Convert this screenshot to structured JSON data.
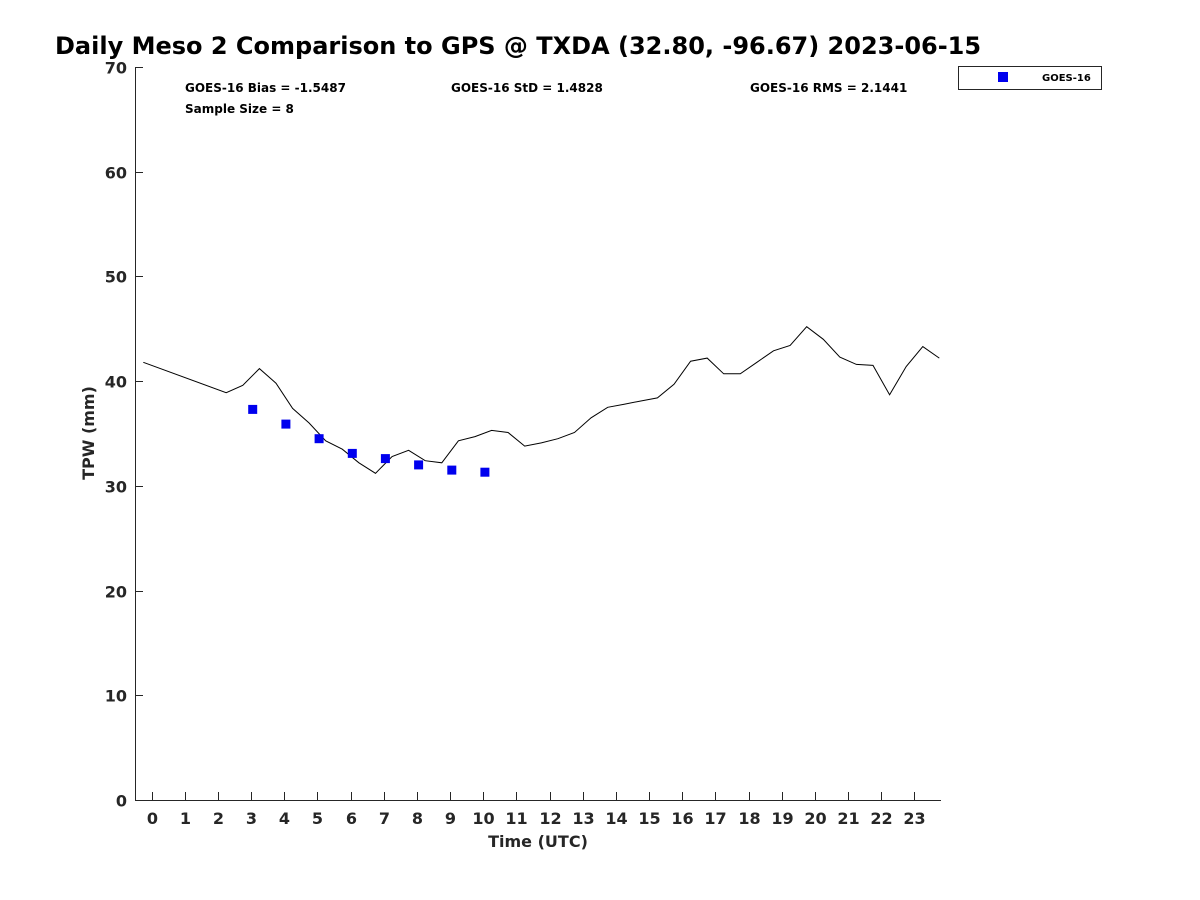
{
  "chart_data": {
    "type": "scatter",
    "title": "Daily Meso 2 Comparison to GPS @ TXDA (32.80, -96.67) 2023-06-15",
    "xlabel": "Time (UTC)",
    "ylabel": "TPW (mm)",
    "xlim": [
      -0.5,
      23.8
    ],
    "ylim": [
      0,
      70
    ],
    "x_ticks": [
      0,
      1,
      2,
      3,
      4,
      5,
      6,
      7,
      8,
      9,
      10,
      11,
      12,
      13,
      14,
      15,
      16,
      17,
      18,
      19,
      20,
      21,
      22,
      23
    ],
    "y_ticks": [
      0,
      10,
      20,
      30,
      40,
      50,
      60,
      70
    ],
    "grid": false,
    "legend_position": "outside-top-right",
    "stats": {
      "bias": "GOES-16 Bias = -1.5487",
      "std": "GOES-16 StD = 1.4828",
      "rms": "GOES-16 RMS = 2.1441",
      "sample": "Sample Size = 8"
    },
    "series": [
      {
        "name": "GOES-16",
        "type": "scatter",
        "marker": "square",
        "color": "#0000ee",
        "x": [
          3.05,
          4.05,
          5.05,
          6.05,
          7.05,
          8.05,
          9.05,
          10.05
        ],
        "y": [
          37.3,
          35.9,
          34.5,
          33.1,
          32.6,
          32.0,
          31.5,
          31.3
        ]
      },
      {
        "type": "line",
        "color": "#000000",
        "x": [
          -0.25,
          2.25,
          2.75,
          3.25,
          3.75,
          4.25,
          4.75,
          5.25,
          5.75,
          6.25,
          6.75,
          7.25,
          7.75,
          8.25,
          8.75,
          9.25,
          9.75,
          10.25,
          10.75,
          11.25,
          11.75,
          12.25,
          12.75,
          13.25,
          13.75,
          14.25,
          14.75,
          15.25,
          15.75,
          16.25,
          16.75,
          17.25,
          17.75,
          18.25,
          18.75,
          19.25,
          19.75,
          20.25,
          20.75,
          21.25,
          21.75,
          22.25,
          22.75,
          23.25,
          23.75
        ],
        "y": [
          41.8,
          38.9,
          39.6,
          41.2,
          39.8,
          37.4,
          36.0,
          34.3,
          33.5,
          32.2,
          31.2,
          32.8,
          33.4,
          32.4,
          32.2,
          34.3,
          34.7,
          35.3,
          35.1,
          33.8,
          34.1,
          34.5,
          35.1,
          36.5,
          37.5,
          37.8,
          38.1,
          38.4,
          39.7,
          41.9,
          42.2,
          40.7,
          40.7,
          41.8,
          42.9,
          43.4,
          45.2,
          44.0,
          42.3,
          41.6,
          41.5,
          38.7,
          41.4,
          43.3,
          42.2
        ]
      }
    ]
  }
}
